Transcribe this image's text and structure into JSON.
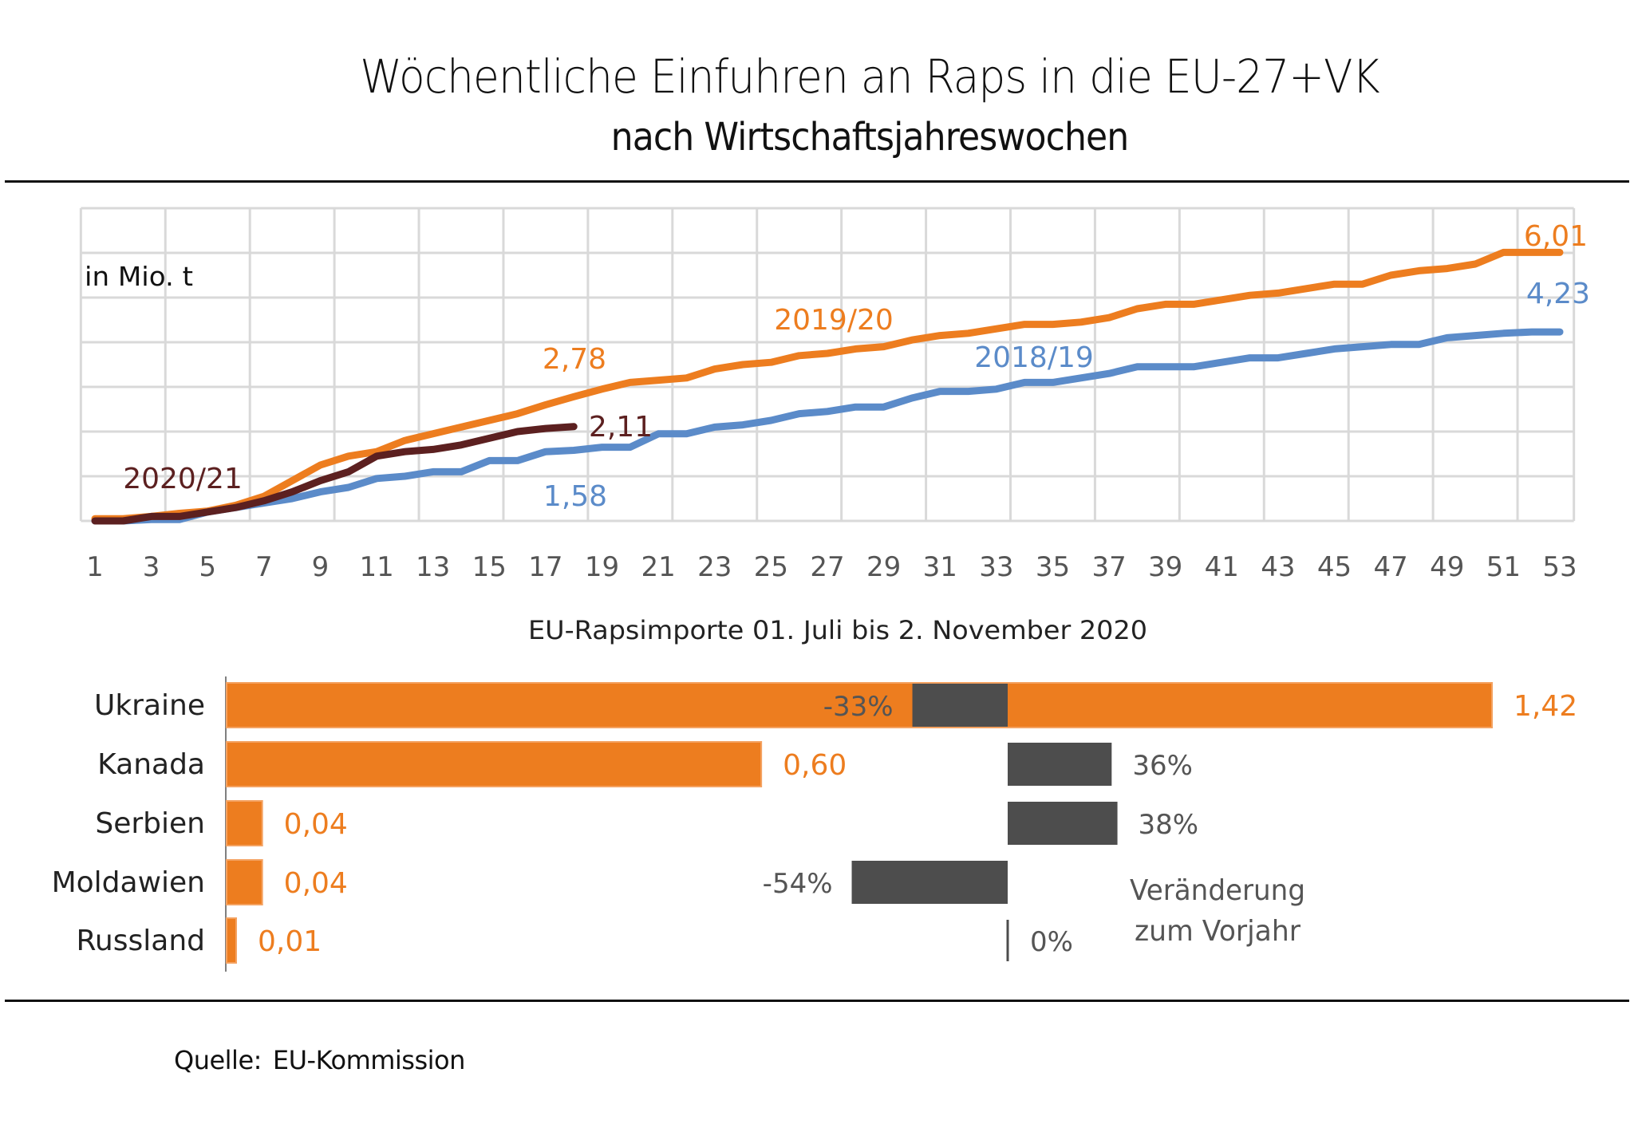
{
  "header": {
    "title": "Wöchentliche Einfuhren an Raps in die EU-27+VK",
    "subtitle": "nach Wirtschaftsjahreswochen"
  },
  "footer": {
    "source_label": "Quelle:",
    "source_value": "EU-Kommission"
  },
  "colors": {
    "orange": "#ED7D1F",
    "blue": "#5B8BC9",
    "dark_brown": "#5C2020",
    "gray_bar": "#4D4D4D",
    "grid": "#D9D9D9",
    "axis": "#7F7F7F"
  },
  "chart_data": [
    {
      "type": "line",
      "title": "Wöchentliche Einfuhren an Raps in die EU-27+VK",
      "subtitle": "nach Wirtschaftsjahreswochen",
      "unit_label": "in Mio. t",
      "xlabel": "",
      "ylabel": "in Mio. t",
      "x_tick_labels": [
        "1",
        "3",
        "5",
        "7",
        "9",
        "11",
        "13",
        "15",
        "17",
        "19",
        "21",
        "23",
        "25",
        "27",
        "29",
        "31",
        "33",
        "35",
        "37",
        "39",
        "41",
        "43",
        "45",
        "47",
        "49",
        "51",
        "53"
      ],
      "xlim": [
        1,
        53
      ],
      "ylim": [
        0,
        7
      ],
      "y_tick_labels_visible": false,
      "grid": true,
      "legend": "inline labels",
      "series": [
        {
          "name": "2019/20",
          "color": "#ED7D1F",
          "x": [
            1,
            2,
            3,
            4,
            5,
            6,
            7,
            8,
            9,
            10,
            11,
            12,
            13,
            14,
            15,
            16,
            17,
            18,
            19,
            20,
            21,
            22,
            23,
            24,
            25,
            26,
            27,
            28,
            29,
            30,
            31,
            32,
            33,
            34,
            35,
            36,
            37,
            38,
            39,
            40,
            41,
            42,
            43,
            44,
            45,
            46,
            47,
            48,
            49,
            50,
            51,
            52,
            53
          ],
          "values": [
            0.05,
            0.05,
            0.1,
            0.17,
            0.22,
            0.35,
            0.55,
            0.9,
            1.25,
            1.45,
            1.55,
            1.8,
            1.95,
            2.1,
            2.25,
            2.4,
            2.6,
            2.78,
            2.95,
            3.1,
            3.15,
            3.2,
            3.4,
            3.5,
            3.55,
            3.7,
            3.75,
            3.85,
            3.9,
            4.05,
            4.15,
            4.2,
            4.3,
            4.4,
            4.4,
            4.45,
            4.55,
            4.75,
            4.85,
            4.85,
            4.95,
            5.05,
            5.1,
            5.2,
            5.3,
            5.3,
            5.5,
            5.6,
            5.65,
            5.75,
            6.01,
            6.01,
            6.01
          ],
          "annotations": [
            {
              "x": 18,
              "text": "2,78"
            },
            {
              "x": 53,
              "text": "6,01"
            },
            {
              "x": 28,
              "text": "2019/20",
              "kind": "series-label"
            }
          ]
        },
        {
          "name": "2018/19",
          "color": "#5B8BC9",
          "x": [
            1,
            2,
            3,
            4,
            5,
            6,
            7,
            8,
            9,
            10,
            11,
            12,
            13,
            14,
            15,
            16,
            17,
            18,
            19,
            20,
            21,
            22,
            23,
            24,
            25,
            26,
            27,
            28,
            29,
            30,
            31,
            32,
            33,
            34,
            35,
            36,
            37,
            38,
            39,
            40,
            41,
            42,
            43,
            44,
            45,
            46,
            47,
            48,
            49,
            50,
            51,
            52,
            53
          ],
          "values": [
            0,
            0,
            0.03,
            0.03,
            0.2,
            0.3,
            0.4,
            0.5,
            0.65,
            0.75,
            0.95,
            1.0,
            1.1,
            1.1,
            1.35,
            1.35,
            1.55,
            1.58,
            1.65,
            1.65,
            1.95,
            1.95,
            2.1,
            2.15,
            2.25,
            2.4,
            2.45,
            2.55,
            2.55,
            2.75,
            2.9,
            2.9,
            2.95,
            3.1,
            3.1,
            3.2,
            3.3,
            3.45,
            3.45,
            3.45,
            3.55,
            3.65,
            3.65,
            3.75,
            3.85,
            3.9,
            3.95,
            3.95,
            4.1,
            4.15,
            4.2,
            4.23,
            4.23
          ],
          "annotations": [
            {
              "x": 18,
              "text": "1,58"
            },
            {
              "x": 53,
              "text": "4,23"
            },
            {
              "x": 36,
              "text": "2018/19",
              "kind": "series-label"
            }
          ]
        },
        {
          "name": "2020/21",
          "color": "#5C2020",
          "x": [
            1,
            2,
            3,
            4,
            5,
            6,
            7,
            8,
            9,
            10,
            11,
            12,
            13,
            14,
            15,
            16,
            17,
            18
          ],
          "values": [
            0,
            0,
            0.1,
            0.1,
            0.2,
            0.3,
            0.45,
            0.65,
            0.9,
            1.1,
            1.45,
            1.55,
            1.6,
            1.7,
            1.85,
            2.0,
            2.07,
            2.11
          ],
          "annotations": [
            {
              "x": 18,
              "text": "2,11"
            },
            {
              "x": 4,
              "text": "2020/21",
              "kind": "series-label"
            }
          ]
        }
      ]
    },
    {
      "type": "bar",
      "orientation": "horizontal",
      "title": "EU-Rapsimporte  01. Juli bis 2. November 2020",
      "categories": [
        "Ukraine",
        "Kanada",
        "Serbien",
        "Moldawien",
        "Russland"
      ],
      "series": [
        {
          "name": "EU-Rapsimporte (Mio. t)",
          "color": "#ED7D1F",
          "values": [
            1.42,
            0.6,
            0.04,
            0.04,
            0.01
          ],
          "labels": [
            "1,42",
            "0,60",
            "0,04",
            "0,04",
            "0,01"
          ]
        },
        {
          "name": "Veränderung zum Vorjahr",
          "color": "#4D4D4D",
          "values": [
            -33,
            36,
            38,
            -54,
            0
          ],
          "labels": [
            "-33%",
            "36%",
            "38%",
            "-54%",
            "0%"
          ]
        }
      ],
      "change_legend": [
        "Veränderung",
        "zum Vorjahr"
      ]
    }
  ]
}
